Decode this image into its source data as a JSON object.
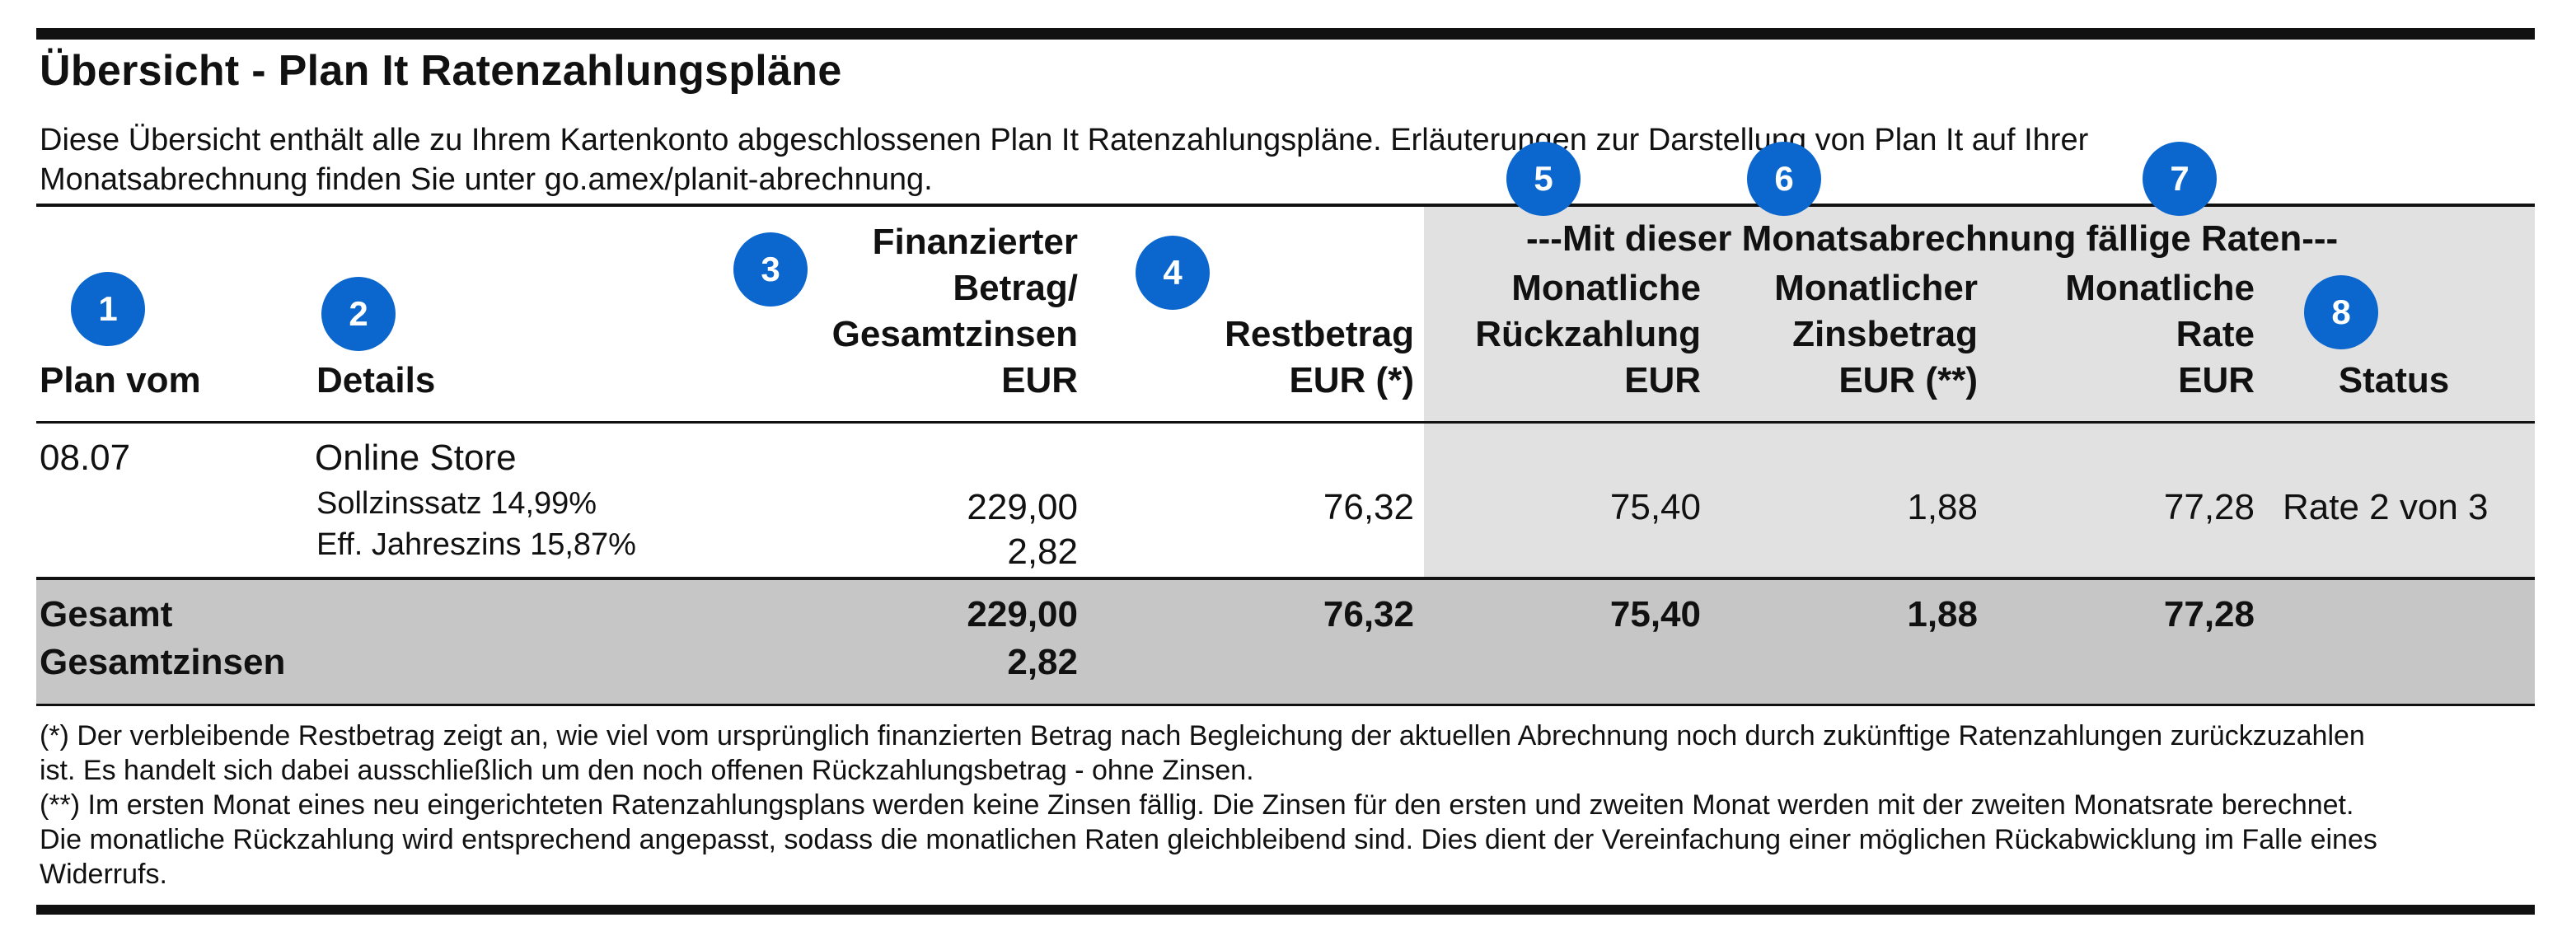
{
  "title": "Übersicht - Plan It Ratenzahlungspläne",
  "intro": {
    "line1": "Diese Übersicht enthält alle zu Ihrem Kartenkonto abgeschlossenen Plan It Ratenzahlungspläne. Erläuterungen zur Darstellung von Plan It auf Ihrer",
    "line2": "Monatsabrechnung finden Sie unter go.amex/planit-abrechnung."
  },
  "group_header": "---Mit dieser Monatsabrechnung fällige Raten---",
  "headers": {
    "plan_vom": "Plan vom",
    "details": "Details",
    "finanziert": [
      "Finanzierter",
      "Betrag/",
      "Gesamtzinsen",
      "EUR"
    ],
    "restbetrag": [
      "Restbetrag",
      "EUR (*)"
    ],
    "rueckzahlung": [
      "Monatliche",
      "Rückzahlung",
      "EUR"
    ],
    "zinsbetrag": [
      "Monatlicher",
      "Zinsbetrag",
      "EUR (**)"
    ],
    "rate": [
      "Monatliche",
      "Rate",
      "EUR"
    ],
    "status": "Status"
  },
  "badges": [
    "1",
    "2",
    "3",
    "4",
    "5",
    "6",
    "7",
    "8"
  ],
  "row": {
    "date": "08.07",
    "merchant": "Online Store",
    "sollzins": "Sollzinssatz 14,99%",
    "effzins": "Eff. Jahreszins 15,87%",
    "betrag": "229,00",
    "zinsen": "2,82",
    "restbetrag": "76,32",
    "rueckzahlung": "75,40",
    "zinsbetrag": "1,88",
    "rate": "77,28",
    "status": "Rate 2 von 3"
  },
  "total": {
    "label1": "Gesamt",
    "label2": "Gesamtzinsen",
    "betrag": "229,00",
    "zinsen": "2,82",
    "restbetrag": "76,32",
    "rueckzahlung": "75,40",
    "zinsbetrag": "1,88",
    "rate": "77,28"
  },
  "footnotes": [
    "(*) Der verbleibende Restbetrag zeigt an, wie viel vom ursprünglich finanzierten Betrag nach Begleichung der aktuellen Abrechnung noch durch zukünftige Ratenzahlungen zurückzuzahlen",
    "ist. Es handelt sich dabei ausschließlich um den noch offenen Rückzahlungsbetrag - ohne Zinsen.",
    "(**) Im ersten Monat eines neu eingerichteten Ratenzahlungsplans werden keine Zinsen fällig. Die Zinsen für den ersten und zweiten Monat werden mit der zweiten Monatsrate berechnet.",
    "Die monatliche Rückzahlung wird entsprechend angepasst, sodass die monatlichen Raten gleichbleibend sind. Dies dient der Vereinfachung einer möglichen Rückabwicklung im Falle eines",
    "Widerrufs."
  ],
  "colors": {
    "badge": "#0b66cd",
    "grey_band": "#e1e1e1",
    "total_band": "#c6c6c6"
  }
}
